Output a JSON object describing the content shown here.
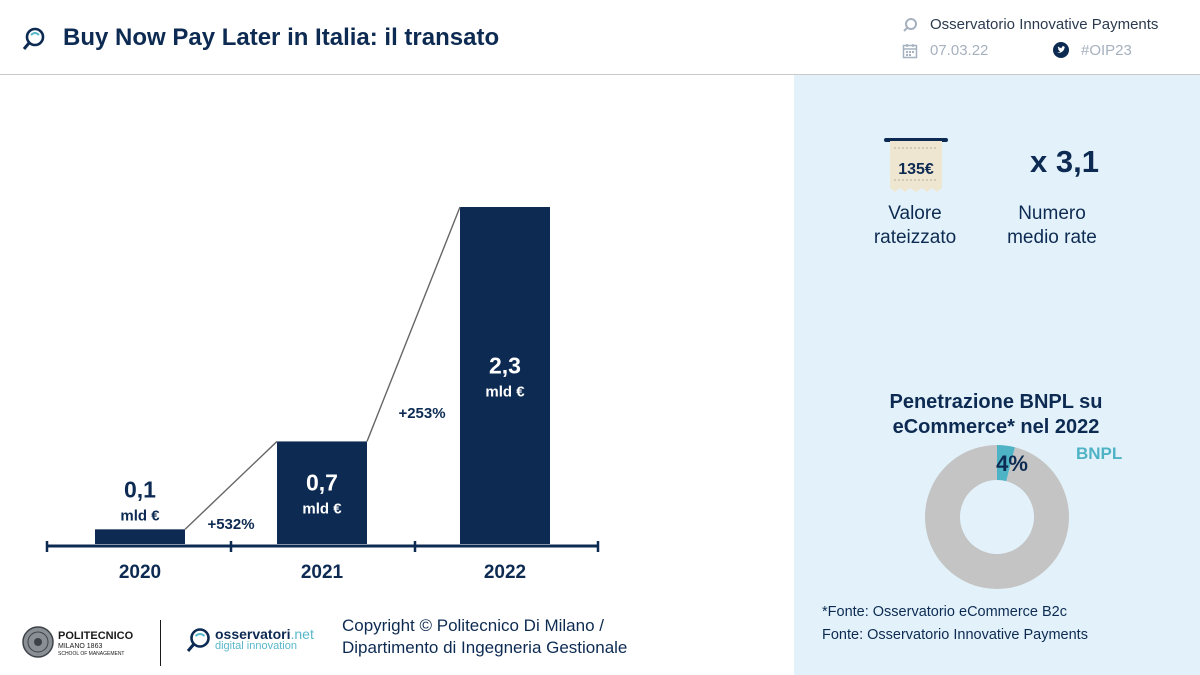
{
  "header": {
    "title": "Buy Now Pay Later in Italia: il transato",
    "org": "Osservatorio Innovative Payments",
    "date": "07.03.22",
    "hashtag": "#OIP23"
  },
  "chart_data": {
    "type": "bar",
    "title": "Buy Now Pay Later in Italia: il transato",
    "categories": [
      "2020",
      "2021",
      "2022"
    ],
    "values": [
      0.1,
      0.7,
      2.3
    ],
    "value_labels": [
      "0,1",
      "0,7",
      "2,3"
    ],
    "unit": "mld €",
    "growth_labels": [
      "+532%",
      "+253%"
    ],
    "xlabel": "",
    "ylabel": "",
    "ylim": [
      0,
      2.3
    ]
  },
  "stats": {
    "receipt_value": "135€",
    "valore_label": "Valore rateizzato",
    "multiplier": "x 3,1",
    "rate_label": "Numero medio rate"
  },
  "penetration": {
    "title": "Penetrazione BNPL su eCommerce* nel 2022",
    "type": "pie",
    "share": 4,
    "share_label": "4%",
    "series_label": "BNPL",
    "colors": {
      "bnpl": "#4fb3c6",
      "rest": "#c4c4c4"
    }
  },
  "sources": {
    "line1": "*Fonte: Osservatorio eCommerce B2c",
    "line2": "Fonte: Osservatorio Innovative Payments"
  },
  "footer": {
    "copyright_line1": "Copyright © Politecnico Di Milano /",
    "copyright_line2": "Dipartimento di Ingegneria Gestionale",
    "poli_name": "POLITECNICO",
    "poli_city": "MILANO 1863",
    "poli_school": "SCHOOL OF MANAGEMENT",
    "oss_name": "osservatori",
    "oss_suffix": ".net",
    "oss_sub": "digital innovation"
  },
  "colors": {
    "navy": "#0d2b52",
    "panel": "#e3f2fa",
    "teal": "#4fb3c6"
  }
}
